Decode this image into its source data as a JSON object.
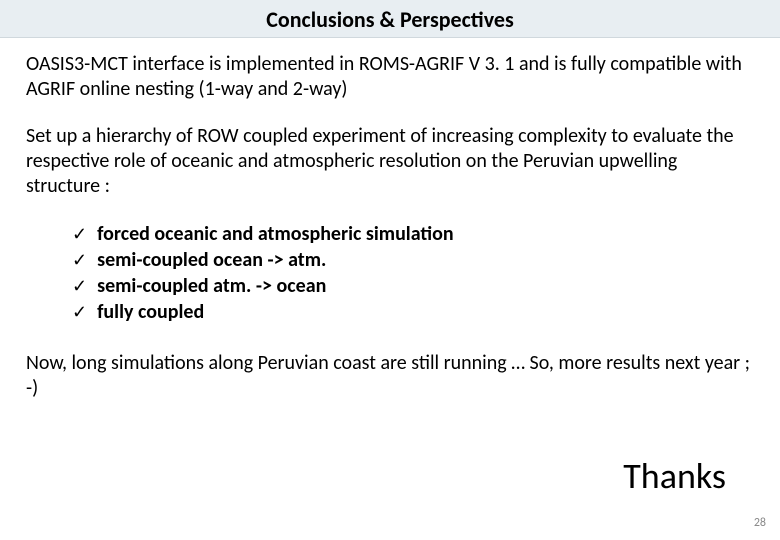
{
  "title": "Conclusions & Perspectives",
  "para1": "OASIS3-MCT interface is implemented in ROMS-AGRIF V 3. 1 and is fully compatible with AGRIF online nesting (1-way and 2-way)",
  "para2": "Set up a hierarchy of ROW coupled experiment of increasing complexity to evaluate the respective role of oceanic and atmospheric resolution on the Peruvian upwelling structure :",
  "checkmark": "✓",
  "items": [
    "forced oceanic and atmospheric simulation",
    "semi-coupled ocean -> atm.",
    "semi-coupled atm. -> ocean",
    "fully coupled"
  ],
  "para3": "Now, long simulations along Peruvian coast are still running …  So, more results next year ; -)",
  "thanks": "Thanks",
  "page_number": "28",
  "colors": {
    "title_bg": "#e8eef2",
    "title_border": "#d0d8dd",
    "text": "#000000",
    "page_num": "#8a8a8a",
    "background": "#ffffff"
  },
  "fonts": {
    "title_size": 22,
    "body_size": 20,
    "thanks_size": 36,
    "page_num_size": 12
  }
}
